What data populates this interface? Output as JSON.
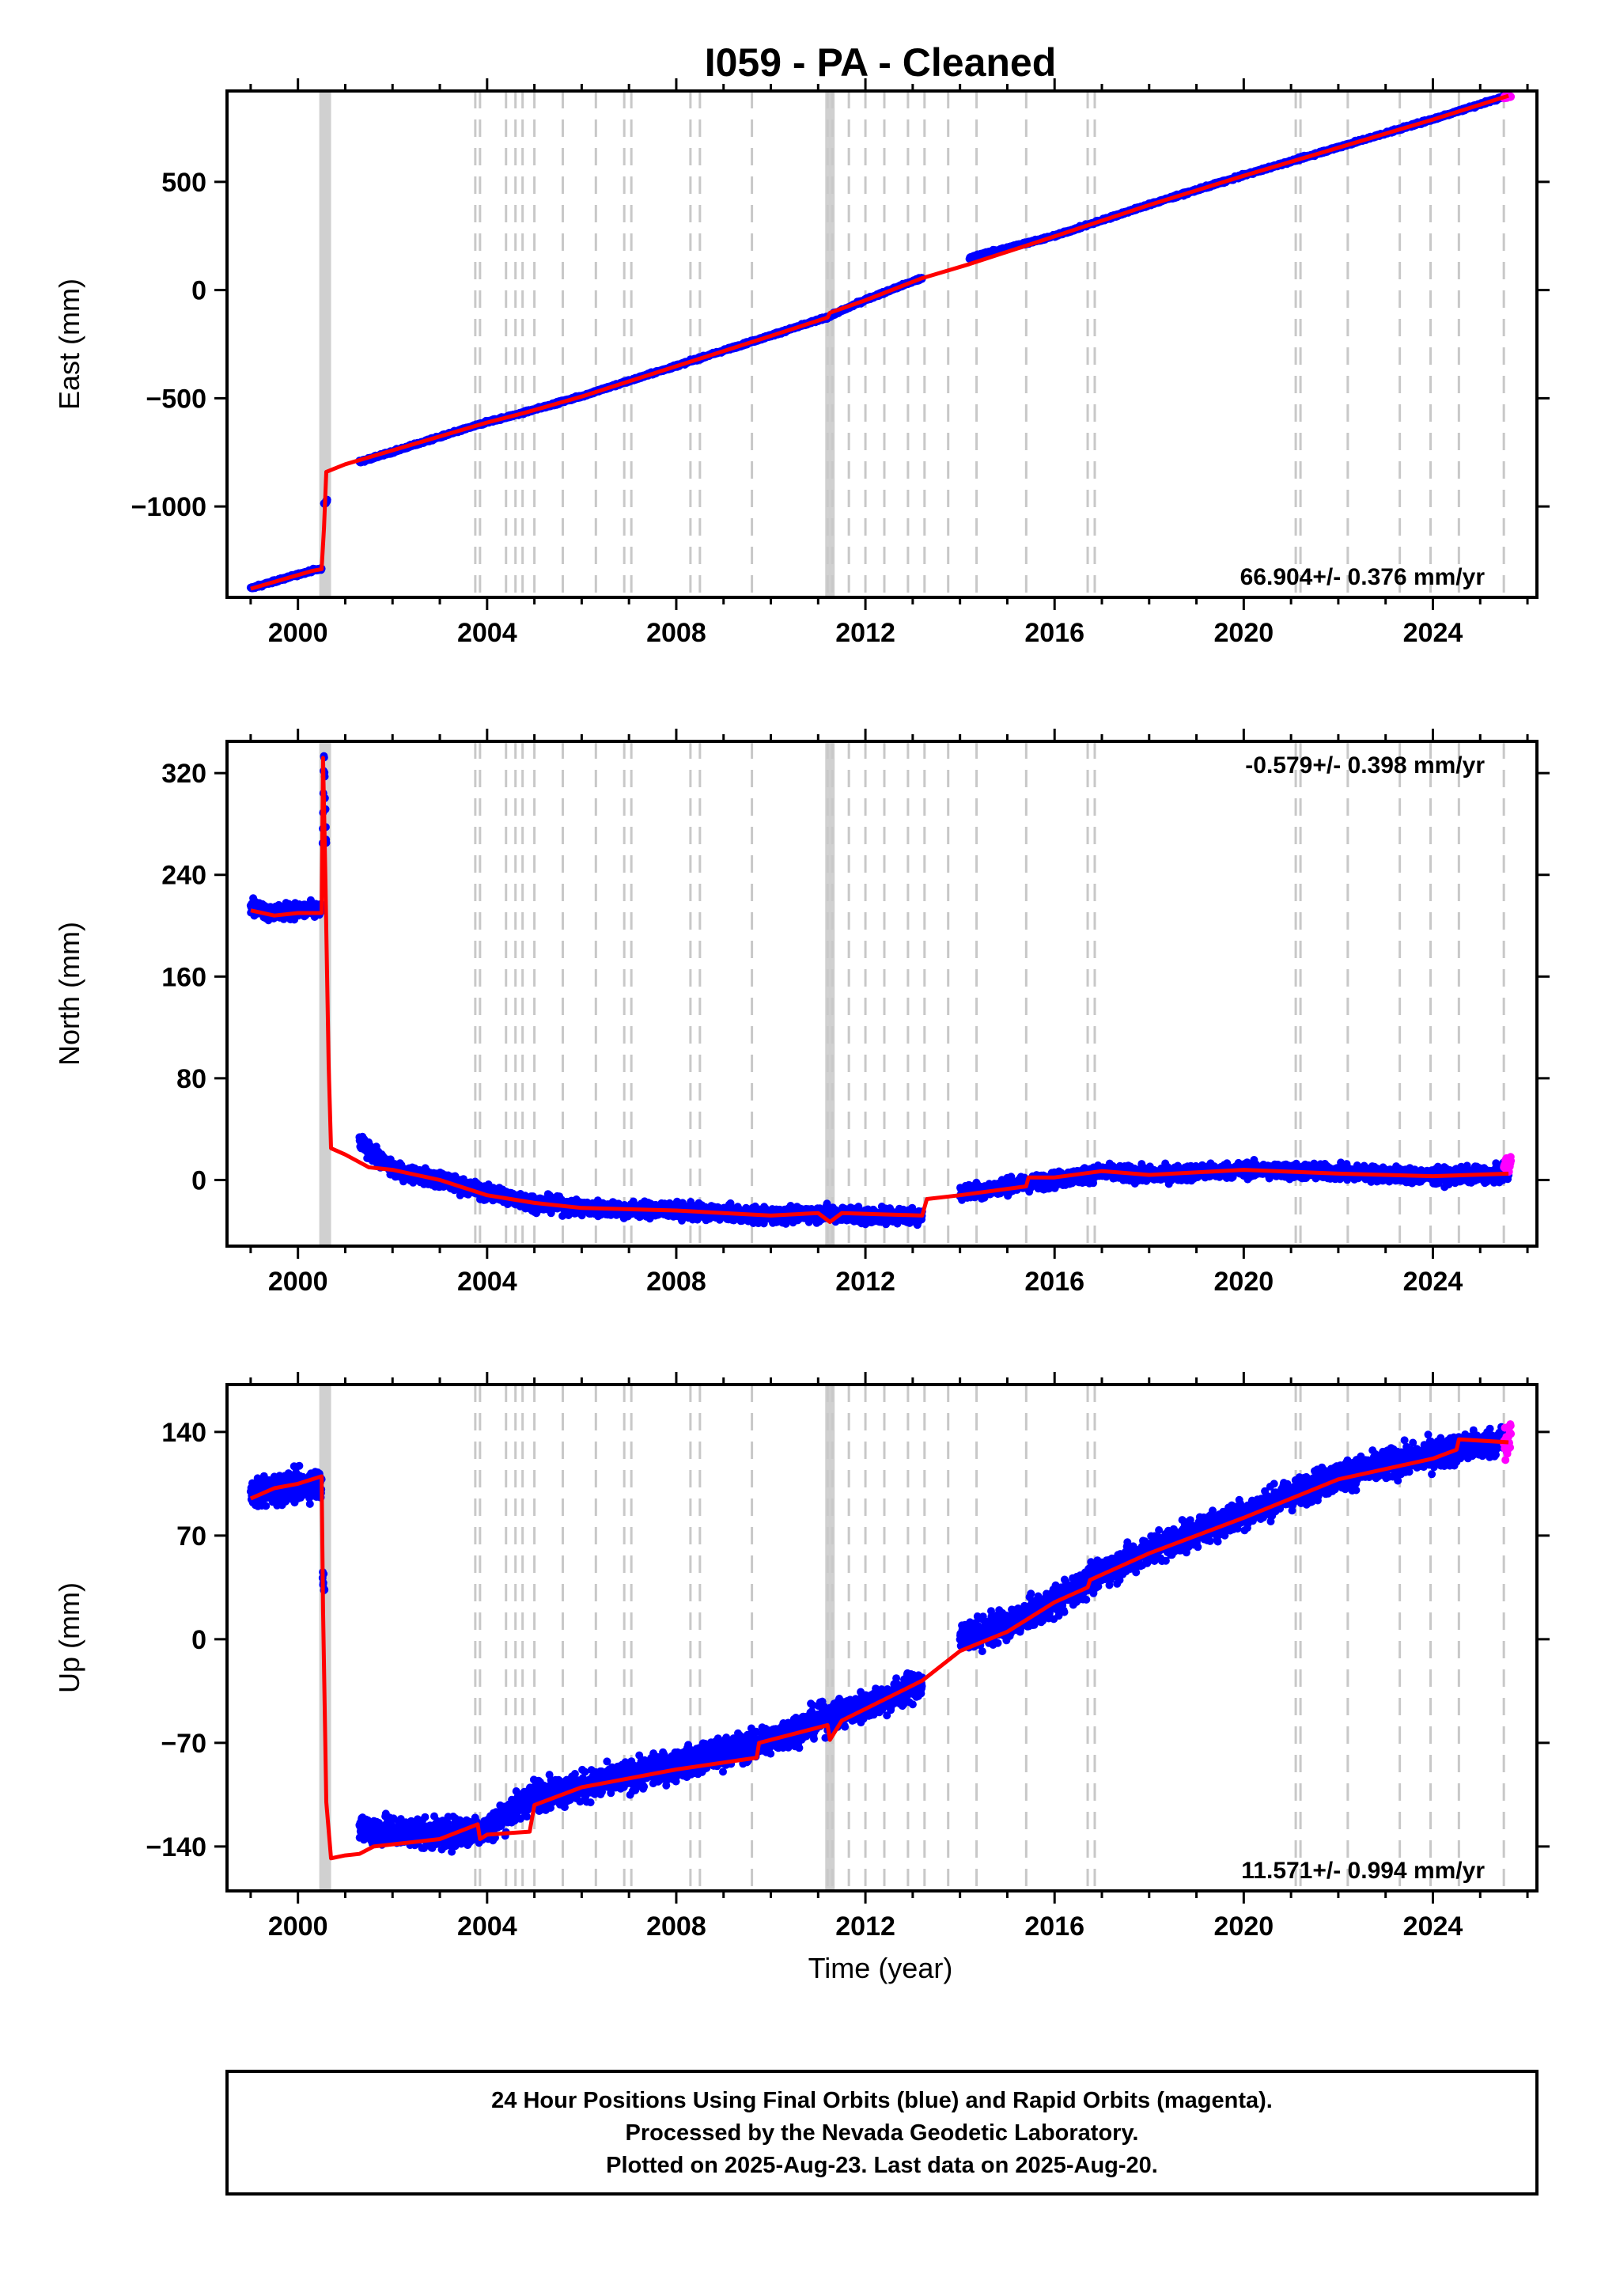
{
  "page": {
    "title": "I059  - PA - Cleaned",
    "footer_lines": [
      "24 Hour Positions Using Final Orbits (blue) and Rapid Orbits (magenta).",
      "Processed by the Nevada Geodetic Laboratory.",
      "Plotted on 2025-Aug-23. Last data on 2025-Aug-20."
    ]
  },
  "colors": {
    "final_orbits": "#0000ff",
    "rapid_orbits": "#ff00ff",
    "model_fit": "#ff0000",
    "event_lines": "#c8c8c8",
    "axes": "#000000"
  },
  "chart_data": [
    {
      "type": "scatter",
      "title": "I059  - PA - Cleaned",
      "xlabel": "",
      "ylabel": "East (mm)",
      "xlim": [
        1998.5,
        2026.2
      ],
      "ylim": [
        -1420,
        920
      ],
      "xticks": [
        2000,
        2004,
        2008,
        2012,
        2016,
        2020,
        2024
      ],
      "yticks": [
        -1000,
        -500,
        0,
        500
      ],
      "grid": false,
      "rate_label": "66.904+/- 0.376 mm/yr",
      "rate_position": "bottom-right",
      "scatter_noise_mm": 6,
      "series": [
        {
          "kind": "final_orbits",
          "segments": [
            [
              [
                1999.0,
                -1378
              ],
              [
                2000.3,
                -1296
              ],
              [
                2000.5,
                -1288
              ]
            ],
            [
              [
                2000.55,
                -990
              ],
              [
                2000.62,
                -970
              ]
            ],
            [
              [
                2001.3,
                -795
              ],
              [
                2004.0,
                -610
              ],
              [
                2004.8,
                -565
              ],
              [
                2006.0,
                -490
              ],
              [
                2008.0,
                -350
              ],
              [
                2010.0,
                -210
              ],
              [
                2011.2,
                -125
              ],
              [
                2012.0,
                -45
              ],
              [
                2013.0,
                40
              ],
              [
                2013.2,
                55
              ]
            ],
            [
              [
                2014.2,
                150
              ],
              [
                2016.0,
                250
              ],
              [
                2018.0,
                395
              ],
              [
                2020.0,
                530
              ],
              [
                2022.0,
                660
              ],
              [
                2024.0,
                790
              ],
              [
                2025.6,
                900
              ]
            ]
          ]
        },
        {
          "kind": "rapid_orbits",
          "segments": [
            [
              [
                2025.5,
                890
              ],
              [
                2025.65,
                900
              ]
            ]
          ]
        },
        {
          "kind": "model_fit",
          "segments": [
            [
              [
                1999.0,
                -1380
              ],
              [
                2000.3,
                -1298
              ],
              [
                2000.5,
                -1290
              ],
              [
                2000.55,
                -1100
              ],
              [
                2000.6,
                -840
              ],
              [
                2001.0,
                -805
              ],
              [
                2004.0,
                -612
              ],
              [
                2004.8,
                -567
              ],
              [
                2006.0,
                -492
              ],
              [
                2008.0,
                -352
              ],
              [
                2010.0,
                -212
              ],
              [
                2011.2,
                -127
              ],
              [
                2011.25,
                -105
              ],
              [
                2012.0,
                -47
              ],
              [
                2013.2,
                55
              ],
              [
                2014.2,
                120
              ],
              [
                2016.0,
                248
              ],
              [
                2018.0,
                393
              ],
              [
                2020.0,
                528
              ],
              [
                2022.0,
                658
              ],
              [
                2024.0,
                788
              ],
              [
                2025.6,
                898
              ]
            ]
          ]
        }
      ]
    },
    {
      "type": "scatter",
      "xlabel": "",
      "ylabel": "North (mm)",
      "xlim": [
        1998.5,
        2026.2
      ],
      "ylim": [
        -52,
        345
      ],
      "xticks": [
        2000,
        2004,
        2008,
        2012,
        2016,
        2020,
        2024
      ],
      "yticks": [
        0,
        80,
        160,
        240,
        320
      ],
      "grid": false,
      "rate_label": "-0.579+/- 0.398 mm/yr",
      "rate_position": "top-right",
      "scatter_noise_mm": 6,
      "series": [
        {
          "kind": "final_orbits",
          "segments": [
            [
              [
                1999.0,
                215
              ],
              [
                1999.5,
                210
              ],
              [
                2000.0,
                212
              ],
              [
                2000.5,
                212
              ]
            ],
            [
              [
                2000.52,
                260
              ],
              [
                2000.55,
                338
              ],
              [
                2000.6,
                260
              ]
            ],
            [
              [
                2001.3,
                30
              ],
              [
                2002.0,
                8
              ],
              [
                2003.0,
                0
              ],
              [
                2004.0,
                -10
              ],
              [
                2005.0,
                -18
              ],
              [
                2006.0,
                -22
              ],
              [
                2008.0,
                -24
              ],
              [
                2010.0,
                -28
              ],
              [
                2011.2,
                -26
              ],
              [
                2012.0,
                -28
              ],
              [
                2013.2,
                -28
              ]
            ],
            [
              [
                2014.0,
                -10
              ],
              [
                2015.0,
                -5
              ],
              [
                2016.0,
                0
              ],
              [
                2017.0,
                6
              ],
              [
                2018.0,
                4
              ],
              [
                2020.0,
                8
              ],
              [
                2022.0,
                6
              ],
              [
                2024.0,
                3
              ],
              [
                2025.6,
                5
              ]
            ]
          ]
        },
        {
          "kind": "rapid_orbits",
          "segments": [
            [
              [
                2025.5,
                10
              ],
              [
                2025.65,
                14
              ]
            ]
          ]
        },
        {
          "kind": "model_fit",
          "segments": [
            [
              [
                1999.0,
                212
              ],
              [
                1999.5,
                208
              ],
              [
                2000.0,
                210
              ],
              [
                2000.5,
                210
              ],
              [
                2000.53,
                332
              ],
              [
                2000.58,
                240
              ],
              [
                2000.65,
                90
              ],
              [
                2000.7,
                25
              ],
              [
                2001.0,
                20
              ],
              [
                2001.5,
                10
              ],
              [
                2002.0,
                8
              ],
              [
                2003.0,
                0
              ],
              [
                2004.0,
                -12
              ],
              [
                2005.0,
                -18
              ],
              [
                2006.0,
                -22
              ],
              [
                2008.0,
                -24
              ],
              [
                2010.0,
                -28
              ],
              [
                2011.0,
                -26
              ],
              [
                2011.25,
                -33
              ],
              [
                2011.5,
                -26
              ],
              [
                2013.2,
                -28
              ],
              [
                2013.3,
                -15
              ],
              [
                2014.0,
                -12
              ],
              [
                2015.4,
                -5
              ],
              [
                2015.45,
                2
              ],
              [
                2016.0,
                2
              ],
              [
                2017.0,
                7
              ],
              [
                2018.0,
                4
              ],
              [
                2020.0,
                8
              ],
              [
                2022.0,
                5
              ],
              [
                2024.0,
                3
              ],
              [
                2025.6,
                5
              ]
            ]
          ]
        }
      ]
    },
    {
      "type": "scatter",
      "xlabel": "Time (year)",
      "ylabel": "Up (mm)",
      "xlim": [
        1998.5,
        2026.2
      ],
      "ylim": [
        -170,
        172
      ],
      "xticks": [
        2000,
        2004,
        2008,
        2012,
        2016,
        2020,
        2024
      ],
      "yticks": [
        -140,
        -70,
        0,
        70,
        140
      ],
      "grid": false,
      "rate_label": "11.571+/- 0.994 mm/yr",
      "rate_position": "bottom-right",
      "scatter_noise_mm": 10,
      "series": [
        {
          "kind": "final_orbits",
          "segments": [
            [
              [
                1999.0,
                98
              ],
              [
                2000.0,
                104
              ],
              [
                2000.5,
                105
              ]
            ],
            [
              [
                2000.52,
                50
              ],
              [
                2000.56,
                35
              ]
            ],
            [
              [
                2001.3,
                -128
              ],
              [
                2003.0,
                -132
              ],
              [
                2004.0,
                -128
              ],
              [
                2005.0,
                -105
              ],
              [
                2006.0,
                -100
              ],
              [
                2008.0,
                -85
              ],
              [
                2010.0,
                -68
              ],
              [
                2011.0,
                -55
              ],
              [
                2012.0,
                -45
              ],
              [
                2013.2,
                -30
              ]
            ],
            [
              [
                2014.0,
                0
              ],
              [
                2015.0,
                10
              ],
              [
                2016.0,
                25
              ],
              [
                2017.0,
                45
              ],
              [
                2018.0,
                60
              ],
              [
                2020.0,
                85
              ],
              [
                2022.0,
                110
              ],
              [
                2024.0,
                125
              ],
              [
                2025.6,
                135
              ]
            ]
          ]
        },
        {
          "kind": "rapid_orbits",
          "segments": [
            [
              [
                2025.5,
                132
              ],
              [
                2025.65,
                138
              ]
            ]
          ]
        },
        {
          "kind": "model_fit",
          "segments": [
            [
              [
                1999.0,
                95
              ],
              [
                1999.5,
                102
              ],
              [
                2000.0,
                105
              ],
              [
                2000.5,
                110
              ],
              [
                2000.53,
                20
              ],
              [
                2000.6,
                -110
              ],
              [
                2000.7,
                -148
              ],
              [
                2001.0,
                -146
              ],
              [
                2001.3,
                -145
              ],
              [
                2001.6,
                -140
              ],
              [
                2003.0,
                -135
              ],
              [
                2003.8,
                -125
              ],
              [
                2003.85,
                -135
              ],
              [
                2004.0,
                -132
              ],
              [
                2004.9,
                -130
              ],
              [
                2005.0,
                -112
              ],
              [
                2006.0,
                -100
              ],
              [
                2008.0,
                -88
              ],
              [
                2009.7,
                -80
              ],
              [
                2009.75,
                -70
              ],
              [
                2011.2,
                -58
              ],
              [
                2011.25,
                -68
              ],
              [
                2011.5,
                -55
              ],
              [
                2013.2,
                -28
              ],
              [
                2014.0,
                -8
              ],
              [
                2015.0,
                5
              ],
              [
                2016.0,
                25
              ],
              [
                2016.7,
                35
              ],
              [
                2016.75,
                40
              ],
              [
                2018.0,
                58
              ],
              [
                2020.0,
                82
              ],
              [
                2022.0,
                108
              ],
              [
                2024.0,
                122
              ],
              [
                2024.5,
                128
              ],
              [
                2024.55,
                135
              ],
              [
                2025.6,
                133
              ]
            ]
          ]
        }
      ]
    }
  ],
  "event_lines": [
    2003.75,
    2003.85,
    2004.4,
    2004.6,
    2004.75,
    2005.0,
    2005.6,
    2006.3,
    2006.9,
    2007.05,
    2008.3,
    2008.5,
    2009.6,
    2011.2,
    2011.3,
    2011.65,
    2012.0,
    2012.4,
    2012.9,
    2013.25,
    2013.75,
    2014.35,
    2015.4,
    2016.7,
    2016.85,
    2021.1,
    2021.2,
    2022.2,
    2023.3,
    2023.95,
    2024.55,
    2025.5
  ],
  "event_bands": [
    [
      2000.45,
      2000.7
    ],
    [
      2011.15,
      2011.35
    ]
  ]
}
